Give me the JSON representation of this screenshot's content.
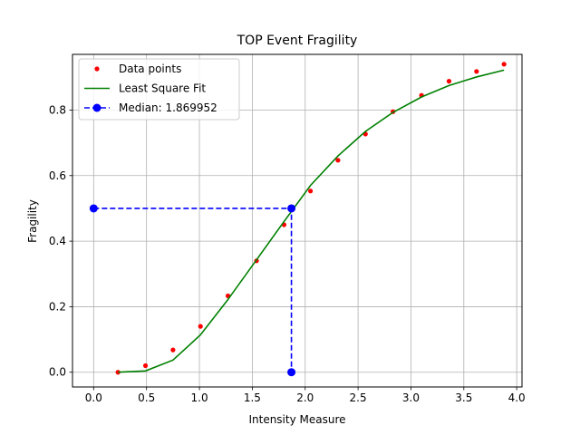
{
  "chart_data": {
    "type": "line",
    "title": "TOP Event Fragility",
    "xlabel": "Intensity Measure",
    "ylabel": "Fragility",
    "xlim": [
      -0.2,
      4.05
    ],
    "ylim": [
      -0.045,
      0.97
    ],
    "xticks": [
      0.0,
      0.5,
      1.0,
      1.5,
      2.0,
      2.5,
      3.0,
      3.5,
      4.0
    ],
    "xtick_labels": [
      "0.0",
      "0.5",
      "1.0",
      "1.5",
      "2.0",
      "2.5",
      "3.0",
      "3.5",
      "4.0"
    ],
    "yticks": [
      0.0,
      0.2,
      0.4,
      0.6,
      0.8
    ],
    "ytick_labels": [
      "0.0",
      "0.2",
      "0.4",
      "0.6",
      "0.8"
    ],
    "grid": true,
    "legend_position": "top-left",
    "series": [
      {
        "name": "Data points",
        "style": "markers",
        "color": "#ff0000",
        "x": [
          0.23,
          0.49,
          0.75,
          1.01,
          1.27,
          1.54,
          1.8,
          2.05,
          2.31,
          2.57,
          2.83,
          3.1,
          3.36,
          3.62,
          3.88
        ],
        "y": [
          0.0,
          0.02,
          0.068,
          0.14,
          0.233,
          0.34,
          0.45,
          0.553,
          0.647,
          0.727,
          0.795,
          0.845,
          0.888,
          0.918,
          0.94
        ]
      },
      {
        "name": "Least Square Fit",
        "style": "line",
        "color": "#008000",
        "x": [
          0.23,
          0.49,
          0.75,
          1.01,
          1.27,
          1.54,
          1.8,
          2.05,
          2.31,
          2.57,
          2.83,
          3.1,
          3.36,
          3.62,
          3.88
        ],
        "y": [
          0.0,
          0.004,
          0.037,
          0.114,
          0.222,
          0.343,
          0.46,
          0.57,
          0.66,
          0.735,
          0.793,
          0.84,
          0.875,
          0.901,
          0.922
        ]
      },
      {
        "name": "Median: 1.869952",
        "style": "dashed-markers",
        "color": "#0000ff",
        "median": 1.869952,
        "level": 0.5,
        "x": [
          0.0,
          1.869952,
          1.869952
        ],
        "y": [
          0.5,
          0.5,
          0.0
        ]
      }
    ]
  }
}
